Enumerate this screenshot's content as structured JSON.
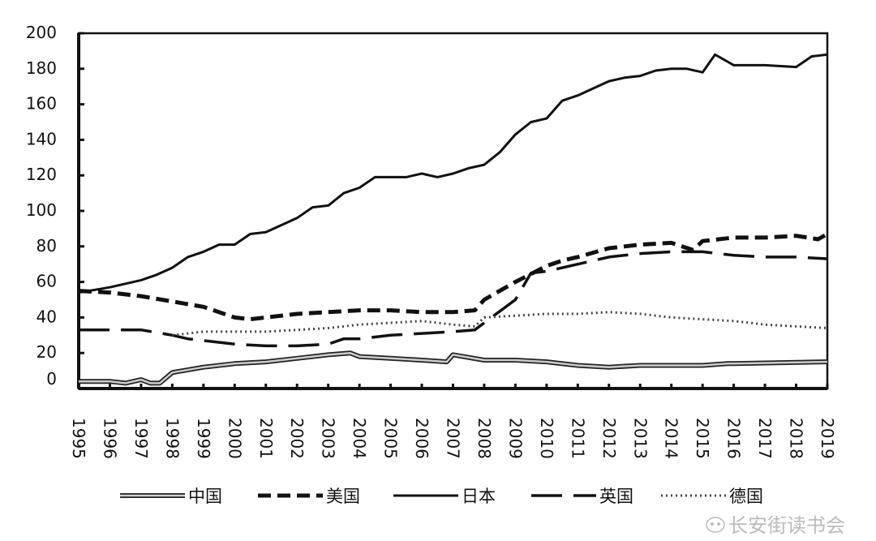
{
  "chart_data": {
    "type": "line",
    "title": "",
    "xlabel": "",
    "ylabel": "",
    "xlim": [
      1995,
      2019
    ],
    "ylim": [
      0,
      200
    ],
    "y_ticks": [
      "0",
      "20",
      "40",
      "60",
      "80",
      "100",
      "120",
      "140",
      "160",
      "180",
      "200"
    ],
    "x_ticks": [
      "1995",
      "1996",
      "1997",
      "1998",
      "1999",
      "2000",
      "2001",
      "2002",
      "2003",
      "2004",
      "2005",
      "2006",
      "2007",
      "2008",
      "2009",
      "2010",
      "2011",
      "2012",
      "2013",
      "2014",
      "2015",
      "2016",
      "2017",
      "2018",
      "2019"
    ],
    "grid": false,
    "legend_position": "bottom",
    "series": [
      {
        "name": "中国",
        "style": "double",
        "x": [
          1995,
          1996,
          1996.5,
          1997,
          1997.3,
          1997.6,
          1998,
          1999,
          2000,
          2001,
          2002,
          2003,
          2003.7,
          2004,
          2005,
          2006,
          2006.8,
          2007,
          2008,
          2009,
          2010,
          2011,
          2012,
          2013,
          2014,
          2015,
          2015.8,
          2016,
          2019
        ],
        "y": [
          4,
          4,
          3,
          5,
          3,
          3,
          9,
          12,
          14,
          15,
          17,
          19,
          20,
          18,
          17,
          16,
          15,
          19,
          16,
          16,
          15,
          13,
          12,
          13,
          13,
          13,
          14,
          14,
          15
        ]
      },
      {
        "name": "美国",
        "style": "short-dash",
        "x": [
          1995,
          1996,
          1997,
          1998,
          1999,
          2000,
          2000.5,
          2001,
          2002,
          2003,
          2004,
          2005,
          2006,
          2007,
          2007.7,
          2008,
          2009,
          2010,
          2010.5,
          2011,
          2012,
          2013,
          2014,
          2014.7,
          2015,
          2016,
          2017,
          2018,
          2018.7,
          2019
        ],
        "y": [
          55,
          54,
          52,
          49,
          46,
          40,
          39,
          40,
          42,
          43,
          44,
          44,
          43,
          43,
          44,
          50,
          60,
          69,
          72,
          74,
          79,
          81,
          82,
          78,
          83,
          85,
          85,
          86,
          84,
          87
        ]
      },
      {
        "name": "日本",
        "style": "solid",
        "x": [
          1995,
          1996,
          1997,
          1997.5,
          1998,
          1998.5,
          1999,
          1999.5,
          2000,
          2000.5,
          2001,
          2001.5,
          2002,
          2002.5,
          2003,
          2003.5,
          2004,
          2004.5,
          2005,
          2005.5,
          2006,
          2006.5,
          2007,
          2007.5,
          2008,
          2008.5,
          2009,
          2009.5,
          2010,
          2010.5,
          2011,
          2011.5,
          2012,
          2012.5,
          2013,
          2013.5,
          2014,
          2014.5,
          2015,
          2015.4,
          2015.8,
          2016,
          2017,
          2018,
          2018.5,
          2019
        ],
        "y": [
          54,
          57,
          61,
          64,
          68,
          74,
          77,
          81,
          81,
          87,
          88,
          92,
          96,
          102,
          103,
          110,
          113,
          119,
          119,
          119,
          121,
          119,
          121,
          124,
          126,
          133,
          143,
          150,
          152,
          162,
          165,
          169,
          173,
          175,
          176,
          179,
          180,
          180,
          178,
          188,
          184,
          182,
          182,
          181,
          187,
          188
        ]
      },
      {
        "name": "英国",
        "style": "long-dash",
        "x": [
          1995,
          1997,
          1998,
          1998.5,
          1999,
          2000,
          2001,
          2002,
          2003,
          2003.5,
          2004,
          2005,
          2006,
          2007,
          2007.7,
          2008,
          2009,
          2009.5,
          2010,
          2011,
          2012,
          2013,
          2014,
          2015,
          2016,
          2017,
          2018,
          2019
        ],
        "y": [
          33,
          33,
          30,
          28,
          27,
          25,
          24,
          24,
          25,
          28,
          28,
          30,
          31,
          32,
          33,
          37,
          50,
          65,
          66,
          70,
          74,
          76,
          77,
          77,
          75,
          74,
          74,
          73
        ]
      },
      {
        "name": "德国",
        "style": "dotted",
        "x": [
          1998,
          1999,
          2000,
          2001,
          2002,
          2003,
          2004,
          2005,
          2006,
          2006.5,
          2007,
          2007.7,
          2008,
          2009,
          2010,
          2011,
          2012,
          2013,
          2014,
          2015,
          2016,
          2017,
          2018,
          2019
        ],
        "y": [
          30,
          32,
          32,
          32,
          33,
          34,
          36,
          37,
          38,
          37,
          36,
          35,
          40,
          41,
          42,
          42,
          43,
          42,
          40,
          39,
          38,
          36,
          35,
          34
        ]
      }
    ]
  },
  "watermark": "长安街读书会"
}
